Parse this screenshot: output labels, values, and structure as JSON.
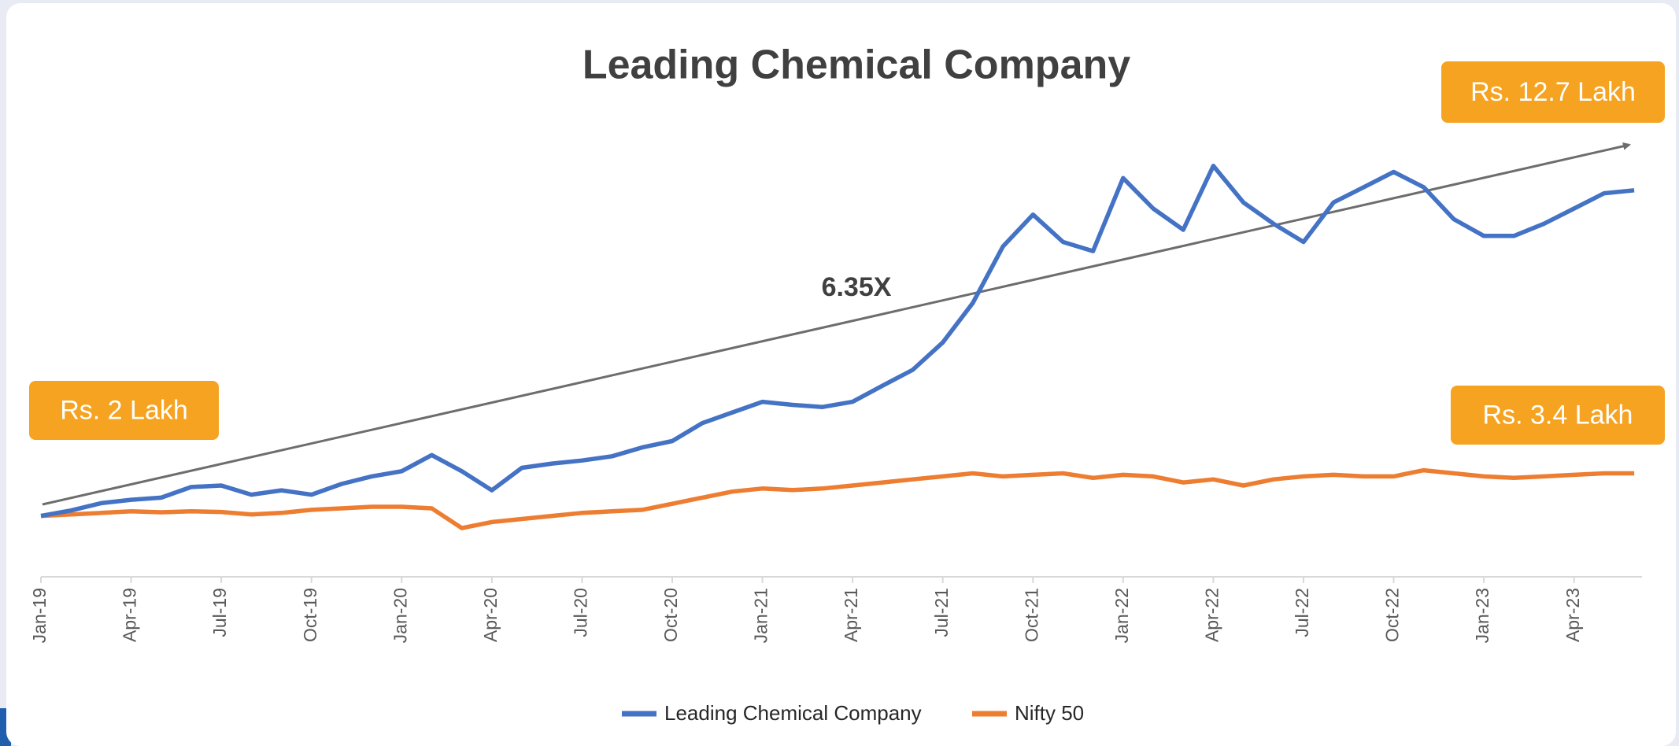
{
  "chart_data": {
    "type": "line",
    "title": "Leading Chemical Company",
    "categories": [
      "Jan-19",
      null,
      null,
      "Apr-19",
      null,
      null,
      "Jul-19",
      null,
      null,
      "Oct-19",
      null,
      null,
      "Jan-20",
      null,
      null,
      "Apr-20",
      null,
      null,
      "Jul-20",
      null,
      null,
      "Oct-20",
      null,
      null,
      "Jan-21",
      null,
      null,
      "Apr-21",
      null,
      null,
      "Jul-21",
      null,
      null,
      "Oct-21",
      null,
      null,
      "Jan-22",
      null,
      null,
      "Apr-22",
      null,
      null,
      "Jul-22",
      null,
      null,
      "Oct-22",
      null,
      null,
      "Jan-23",
      null,
      null,
      "Apr-23",
      null,
      null
    ],
    "ylim": [
      0,
      14.4
    ],
    "series": [
      {
        "name": "Leading Chemical Company",
        "color": "#4472c4",
        "values": [
          2.0,
          2.18,
          2.42,
          2.53,
          2.6,
          2.95,
          3.0,
          2.7,
          2.84,
          2.7,
          3.05,
          3.3,
          3.47,
          4.0,
          3.47,
          2.84,
          3.58,
          3.72,
          3.82,
          3.96,
          4.25,
          4.46,
          5.05,
          5.4,
          5.75,
          5.65,
          5.58,
          5.75,
          6.28,
          6.8,
          7.7,
          9.0,
          10.85,
          11.9,
          11.0,
          10.7,
          13.1,
          12.1,
          11.4,
          13.5,
          12.3,
          11.6,
          11.0,
          12.3,
          12.8,
          13.3,
          12.8,
          11.75,
          11.2,
          11.2,
          11.6,
          12.1,
          12.6,
          12.7
        ]
      },
      {
        "name": "Nifty 50",
        "color": "#ed7d31",
        "values": [
          2.0,
          2.05,
          2.1,
          2.15,
          2.12,
          2.15,
          2.13,
          2.05,
          2.1,
          2.2,
          2.25,
          2.3,
          2.3,
          2.25,
          1.6,
          1.8,
          1.9,
          2.0,
          2.1,
          2.15,
          2.2,
          2.4,
          2.6,
          2.8,
          2.9,
          2.85,
          2.9,
          3.0,
          3.1,
          3.2,
          3.3,
          3.4,
          3.3,
          3.35,
          3.4,
          3.25,
          3.35,
          3.3,
          3.1,
          3.2,
          3.0,
          3.2,
          3.3,
          3.35,
          3.3,
          3.3,
          3.5,
          3.4,
          3.3,
          3.25,
          3.3,
          3.35,
          3.4,
          3.4
        ]
      }
    ],
    "annotations": [
      "6.35X",
      "Rs. 2 Lakh",
      "Rs. 12.7 Lakh",
      "Rs. 3.4 Lakh"
    ]
  }
}
